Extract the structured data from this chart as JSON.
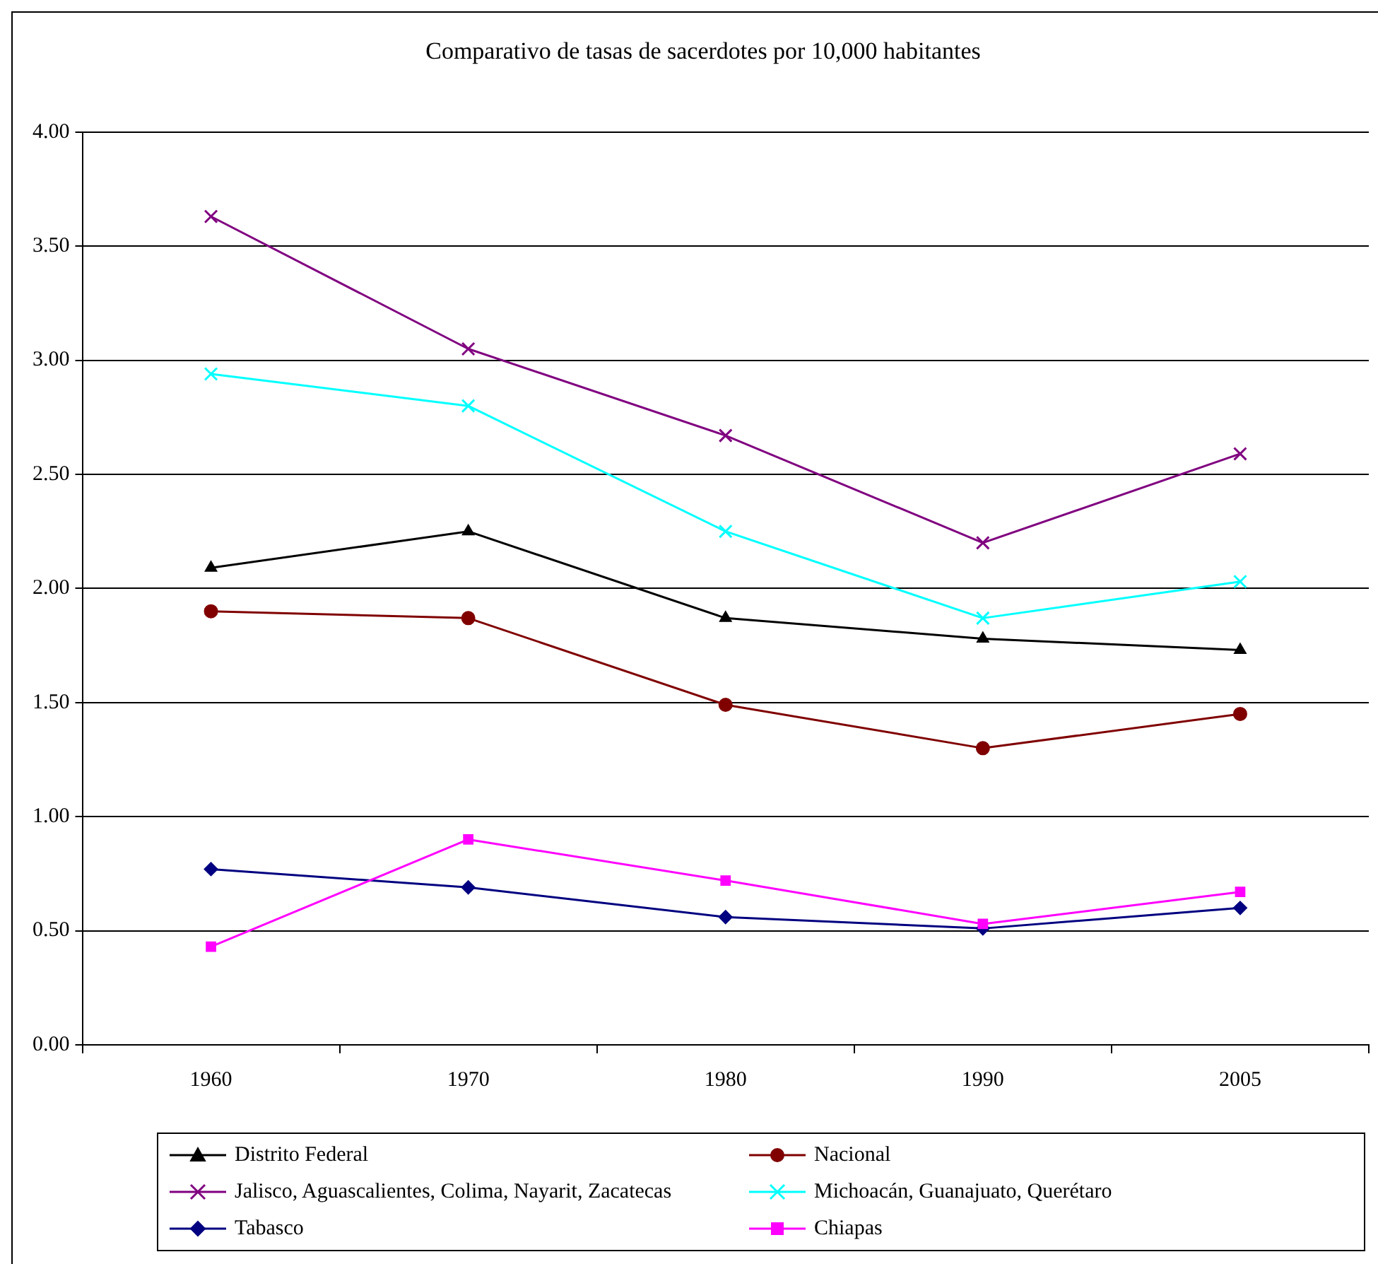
{
  "chart_data": {
    "type": "line",
    "title": "Comparativo de tasas de sacerdotes por 10,000 habitantes",
    "categories": [
      "1960",
      "1970",
      "1980",
      "1990",
      "2005"
    ],
    "series": [
      {
        "name": "Distrito Federal",
        "color": "#000000",
        "marker": "triangle",
        "values": [
          2.09,
          2.25,
          1.87,
          1.78,
          1.73
        ]
      },
      {
        "name": "Nacional",
        "color": "#800000",
        "marker": "circle",
        "values": [
          1.9,
          1.87,
          1.49,
          1.3,
          1.45
        ]
      },
      {
        "name": "Jalisco, Aguascalientes, Colima, Nayarit, Zacatecas",
        "color": "#800080",
        "marker": "cross",
        "values": [
          3.63,
          3.05,
          2.67,
          2.2,
          2.59
        ]
      },
      {
        "name": "Michoacán, Guanajuato, Querétaro",
        "color": "#00ffff",
        "marker": "cross",
        "values": [
          2.94,
          2.8,
          2.25,
          1.87,
          2.03
        ]
      },
      {
        "name": "Tabasco",
        "color": "#000080",
        "marker": "diamond",
        "values": [
          0.77,
          0.69,
          0.56,
          0.51,
          0.6
        ]
      },
      {
        "name": "Chiapas",
        "color": "#ff00ff",
        "marker": "square",
        "values": [
          0.43,
          0.9,
          0.72,
          0.53,
          0.67
        ]
      }
    ],
    "ylim": [
      0,
      4
    ],
    "yticks": [
      {
        "value": 0,
        "label": "0.00"
      },
      {
        "value": 0.5,
        "label": "0.50"
      },
      {
        "value": 1,
        "label": "1.00"
      },
      {
        "value": 1.5,
        "label": "1.50"
      },
      {
        "value": 2,
        "label": "2.00"
      },
      {
        "value": 2.5,
        "label": "2.50"
      },
      {
        "value": 3,
        "label": "3.00"
      },
      {
        "value": 3.5,
        "label": "3.50"
      },
      {
        "value": 4,
        "label": "4.00"
      }
    ],
    "grid": "y",
    "legend": "bottom",
    "line_style": "solid"
  }
}
